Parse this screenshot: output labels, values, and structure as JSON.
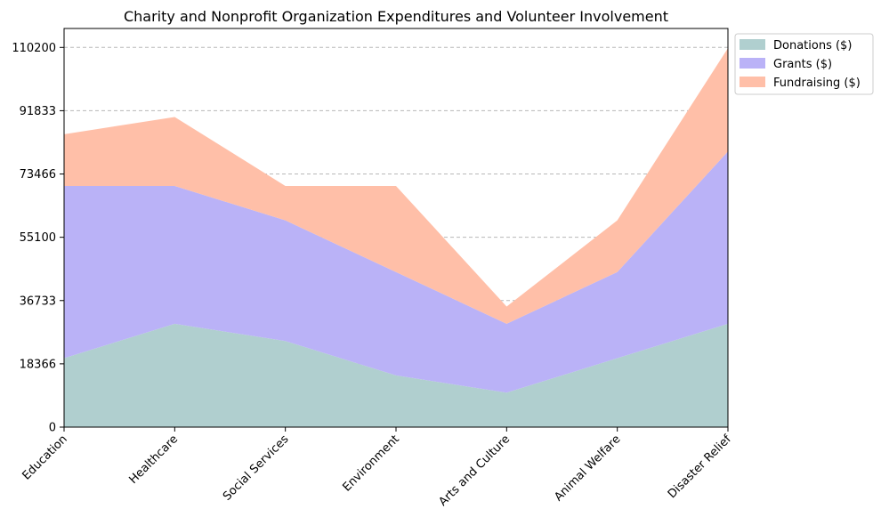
{
  "chart_data": {
    "type": "area",
    "stacked": true,
    "title": "Charity and Nonprofit Organization Expenditures and Volunteer Involvement",
    "xlabel": "",
    "ylabel": "",
    "categories": [
      "Education",
      "Healthcare",
      "Social Services",
      "Environment",
      "Arts and Culture",
      "Animal Welfare",
      "Disaster Relief"
    ],
    "series": [
      {
        "name": "Donations ($)",
        "values": [
          20000,
          30000,
          25000,
          15000,
          10000,
          20000,
          30000
        ],
        "color": "#b0cfcf"
      },
      {
        "name": "Grants ($)",
        "values": [
          50000,
          40000,
          35000,
          30000,
          20000,
          25000,
          50000
        ],
        "color": "#bab2f7"
      },
      {
        "name": "Fundraising ($)",
        "values": [
          15000,
          20000,
          10000,
          25000,
          5000,
          15000,
          30000
        ],
        "color": "#ffbfa8"
      }
    ],
    "yticks": [
      0,
      18366,
      36733,
      55100,
      73466,
      91833,
      110200
    ],
    "ylim": [
      0,
      115700
    ],
    "grid": "y-dashed",
    "legend_position": "outside-top-right"
  }
}
